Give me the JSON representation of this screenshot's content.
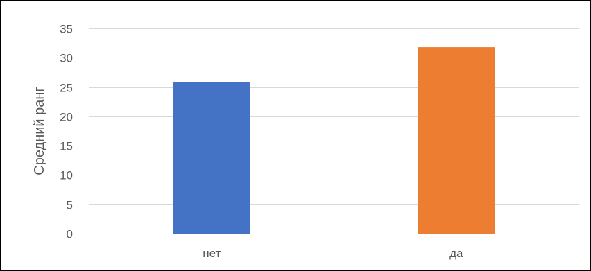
{
  "chart_data": {
    "type": "bar",
    "title": "",
    "xlabel": "",
    "ylabel": "Средний ранг",
    "categories": [
      "нет",
      "да"
    ],
    "values": [
      25.8,
      31.8
    ],
    "colors": [
      "#4472c4",
      "#ed7d31"
    ],
    "ylim": [
      0,
      35
    ],
    "yticks": [
      0,
      5,
      10,
      15,
      20,
      25,
      30,
      35
    ],
    "grid": true,
    "legend": "none",
    "gridColor": "#d9d9d9"
  }
}
